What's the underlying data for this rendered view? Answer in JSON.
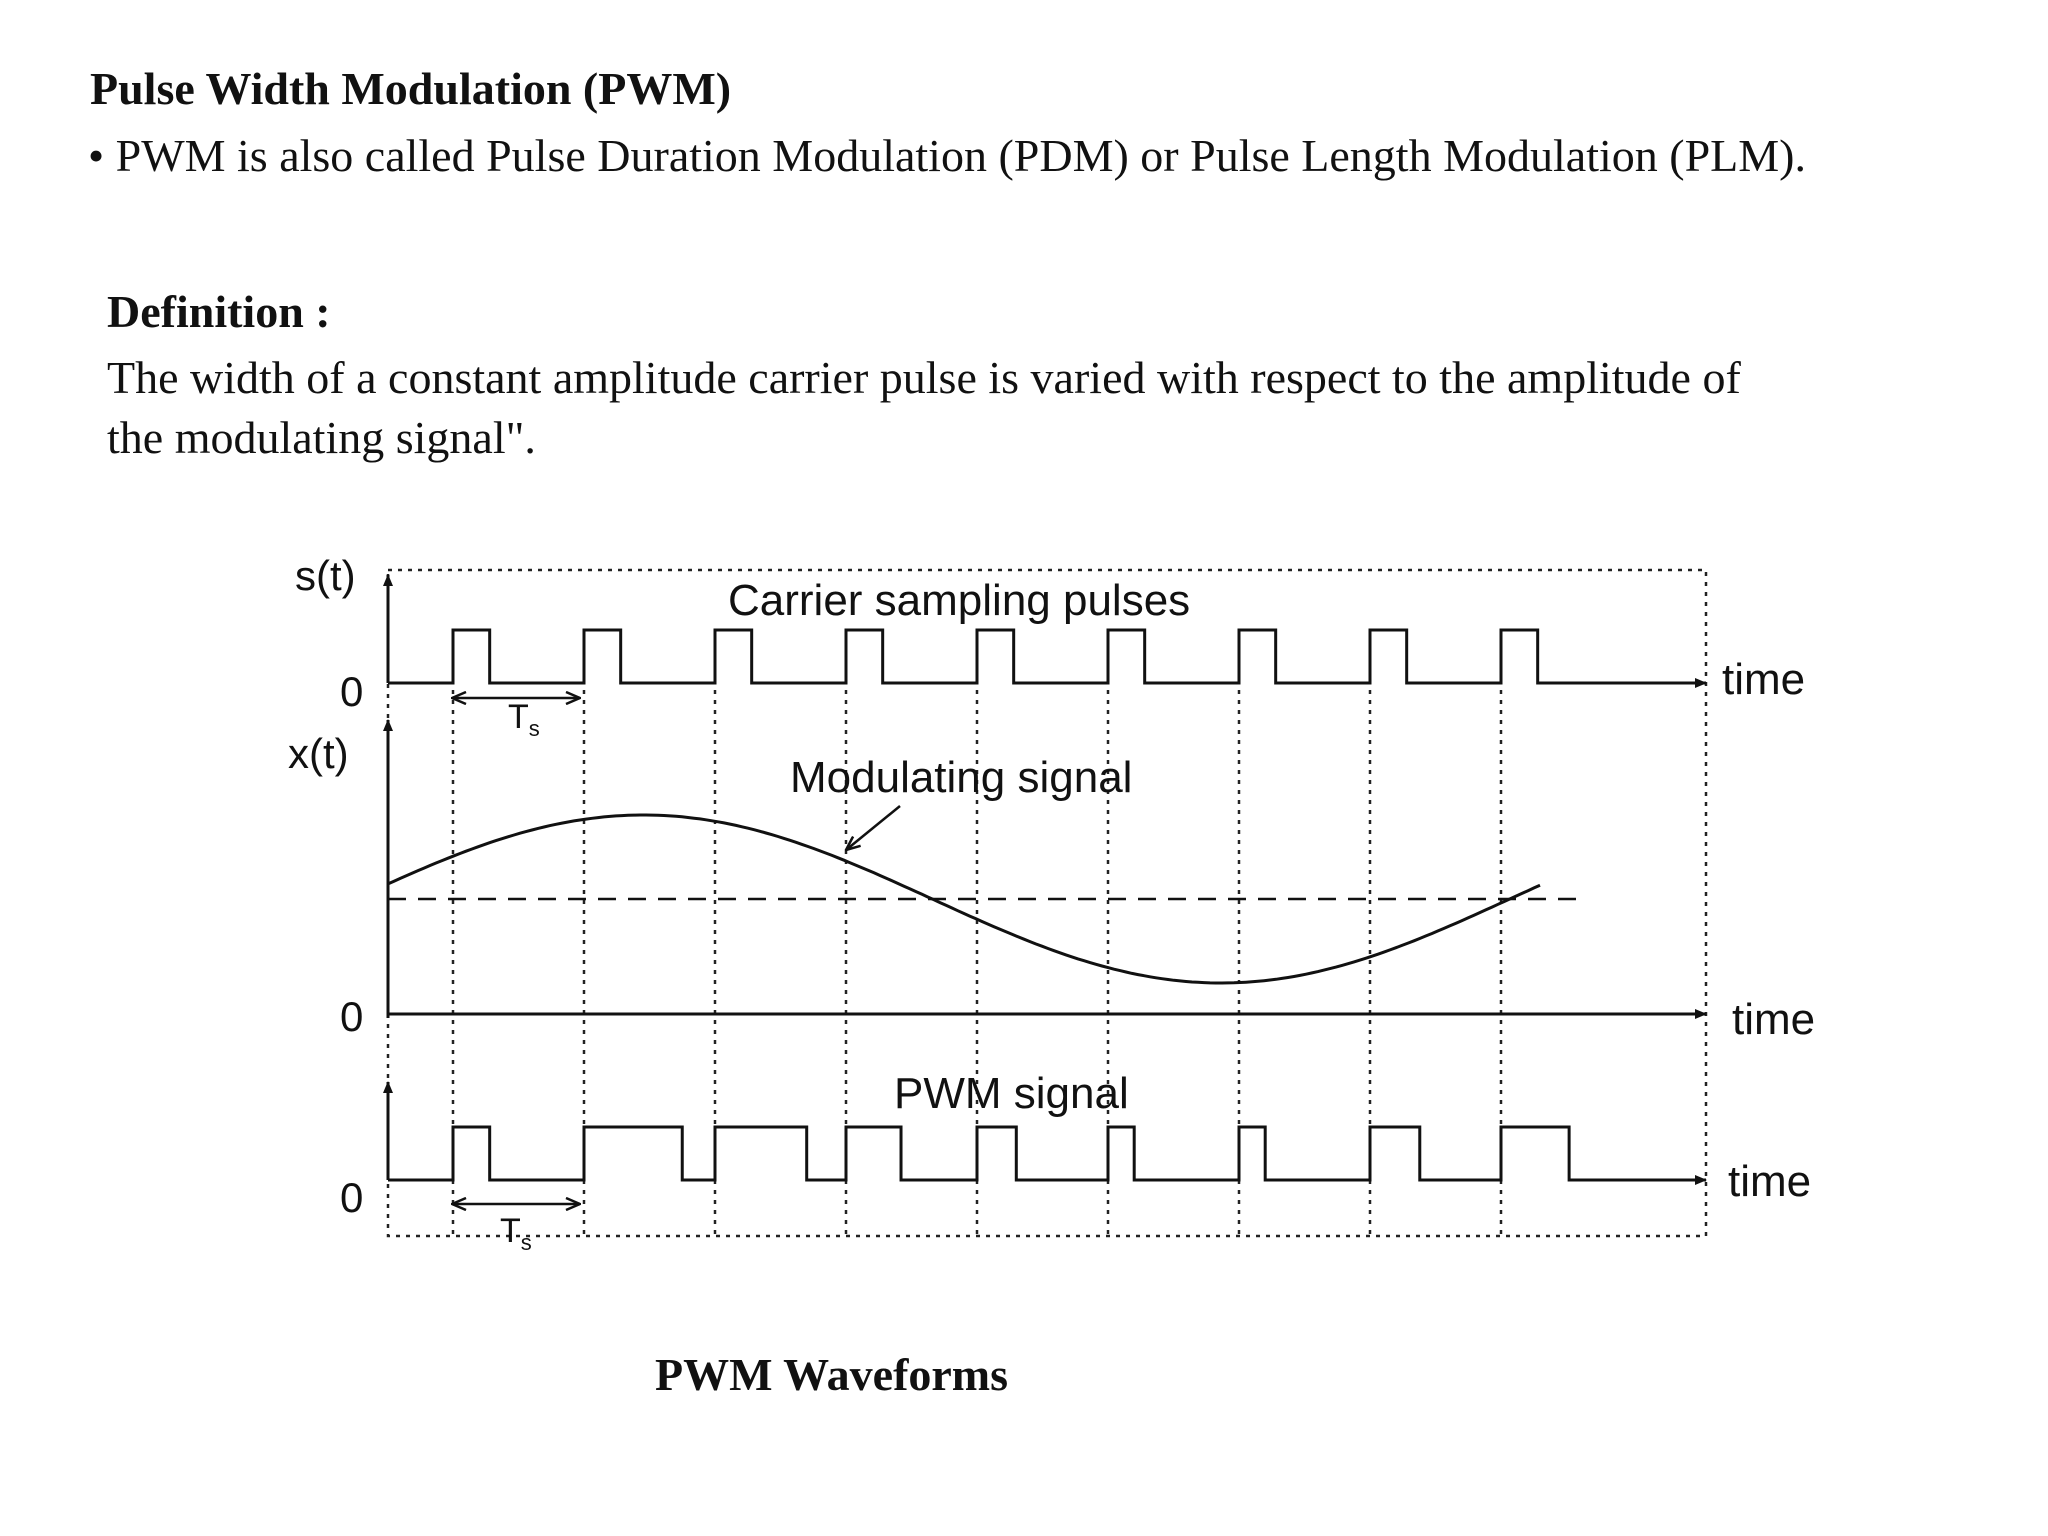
{
  "title": "Pulse Width Modulation (PWM)",
  "bullet": "• PWM is also called Pulse Duration Modulation (PDM) or Pulse Length Modulation (PLM).",
  "definition": {
    "heading": "Definition :",
    "text": "The width of a constant amplitude carrier pulse is varied with respect to the amplitude of the modulating signal\"."
  },
  "diagram": {
    "labels": {
      "s_axis": "s(t)",
      "x_axis": "x(t)",
      "zero": "0",
      "carrier": "Carrier sampling pulses",
      "modulating": "Modulating signal",
      "pwm": "PWM signal",
      "time": "time",
      "period": "T",
      "period_sub": "s"
    },
    "pulse_count": 9,
    "carrier_pulse_width": 0.28,
    "pwm_pulse_widths": [
      0.28,
      0.75,
      0.7,
      0.42,
      0.3,
      0.2,
      0.2,
      0.38,
      0.52
    ]
  },
  "caption": "PWM Waveforms"
}
